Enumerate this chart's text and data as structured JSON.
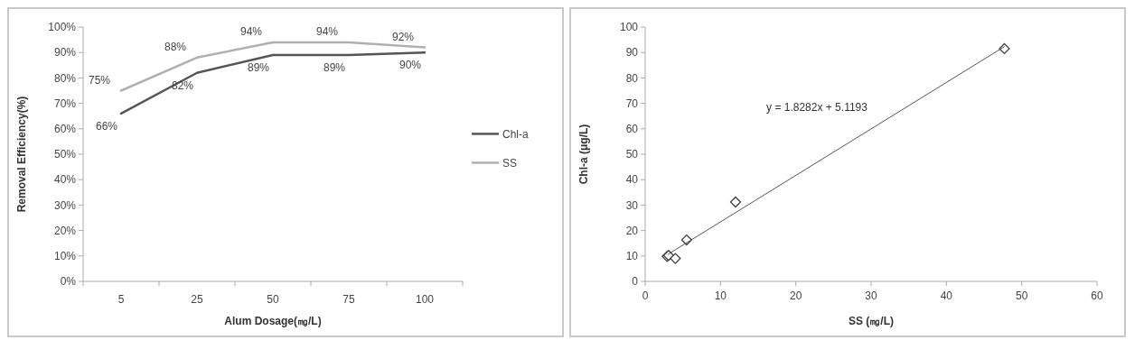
{
  "chart_data": [
    {
      "type": "line",
      "xlabel": "Alum Dosage(㎎/L)",
      "ylabel": "Removal Efficiency(%)",
      "categories": [
        "5",
        "25",
        "50",
        "75",
        "100"
      ],
      "series": [
        {
          "name": "Chl-a",
          "color": "#555555",
          "values": [
            66,
            82,
            89,
            89,
            90
          ],
          "value_labels": [
            "66%",
            "82%",
            "89%",
            "89%",
            "90%"
          ]
        },
        {
          "name": "SS",
          "color": "#b0b0b0",
          "values": [
            75,
            88,
            94,
            94,
            92
          ],
          "value_labels": [
            "75%",
            "88%",
            "94%",
            "94%",
            "92%"
          ]
        }
      ],
      "ylim": [
        0,
        100
      ],
      "yticks": [
        {
          "value": 0,
          "label": "0%"
        },
        {
          "value": 10,
          "label": "10%"
        },
        {
          "value": 20,
          "label": "20%"
        },
        {
          "value": 30,
          "label": "30%"
        },
        {
          "value": 40,
          "label": "40%"
        },
        {
          "value": 50,
          "label": "50%"
        },
        {
          "value": 60,
          "label": "60%"
        },
        {
          "value": 70,
          "label": "70%"
        },
        {
          "value": 80,
          "label": "80%"
        },
        {
          "value": 90,
          "label": "90%"
        },
        {
          "value": 100,
          "label": "100%"
        }
      ],
      "legend": "right",
      "line_style": "solid"
    },
    {
      "type": "scatter",
      "xlabel": "SS (㎎/L)",
      "ylabel": "Chl-a  (μg/L)",
      "series": [
        {
          "type": "scatter",
          "marker": "diamond",
          "color": "#404040",
          "x": [
            2.9,
            3.1,
            4,
            5.5,
            12,
            47.7
          ],
          "values": [
            9.8,
            10.2,
            9,
            16.3,
            31.2,
            91.5
          ]
        },
        {
          "type": "line",
          "color": "#555555",
          "x": [
            3,
            47.7
          ],
          "values": [
            10.6,
            92.3
          ]
        }
      ],
      "xlim": [
        0,
        60
      ],
      "xticks": [
        0,
        10,
        20,
        30,
        40,
        50,
        60
      ],
      "ylim": [
        0,
        100
      ],
      "yticks": [
        0,
        10,
        20,
        30,
        40,
        50,
        60,
        70,
        80,
        90,
        100
      ],
      "annotations": [
        "y = 1.8282x + 5.1193"
      ]
    }
  ]
}
